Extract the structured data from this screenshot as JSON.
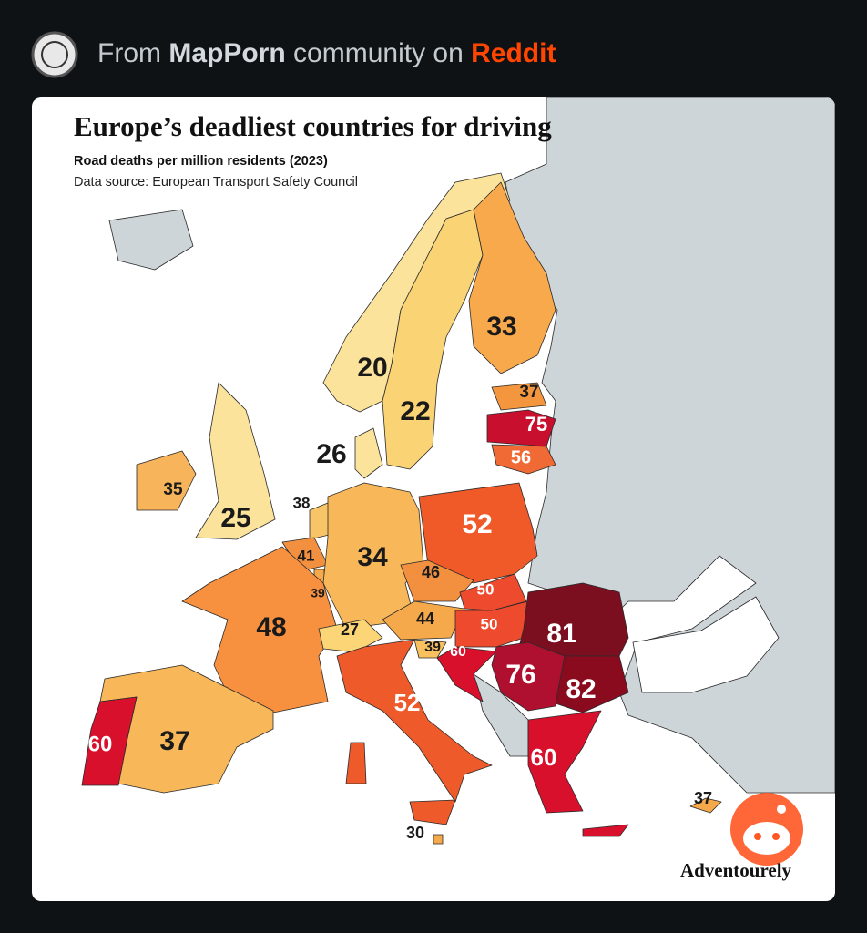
{
  "header": {
    "prefix": "From",
    "community": "MapPorn",
    "middle": "community on",
    "site": "Reddit"
  },
  "map": {
    "title": "Europe’s deadliest countries for driving",
    "subtitle": "Road deaths per million residents (2023)",
    "source": "Data source: European Transport Safety Council",
    "labels": [
      33,
      20,
      22,
      37,
      75,
      56,
      26,
      35,
      25,
      38,
      41,
      39,
      34,
      52,
      46,
      50,
      48,
      27,
      44,
      50,
      39,
      60,
      81,
      76,
      82,
      52,
      60,
      60,
      37,
      37,
      30
    ],
    "credit": "Adventourely"
  }
}
